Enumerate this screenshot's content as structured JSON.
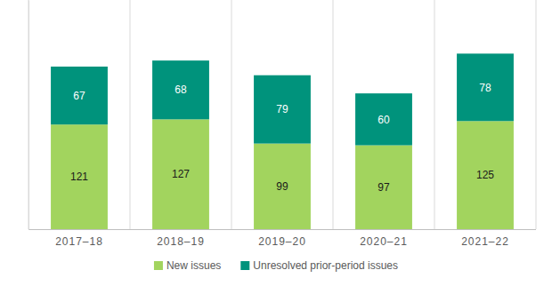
{
  "chart_data": {
    "type": "bar",
    "categories": [
      "2017–18",
      "2018–19",
      "2019–20",
      "2020–21",
      "2021–22"
    ],
    "series": [
      {
        "name": "New issues",
        "color": "#a2d45e",
        "values": [
          121,
          127,
          99,
          97,
          125
        ]
      },
      {
        "name": "Unresolved prior-period issues",
        "color": "#00937c",
        "values": [
          67,
          68,
          79,
          60,
          78
        ]
      }
    ],
    "stacked": true,
    "data_labels": true,
    "tick_labels": "x",
    "legend": "bottom",
    "ylim": [
      0,
      265
    ]
  }
}
